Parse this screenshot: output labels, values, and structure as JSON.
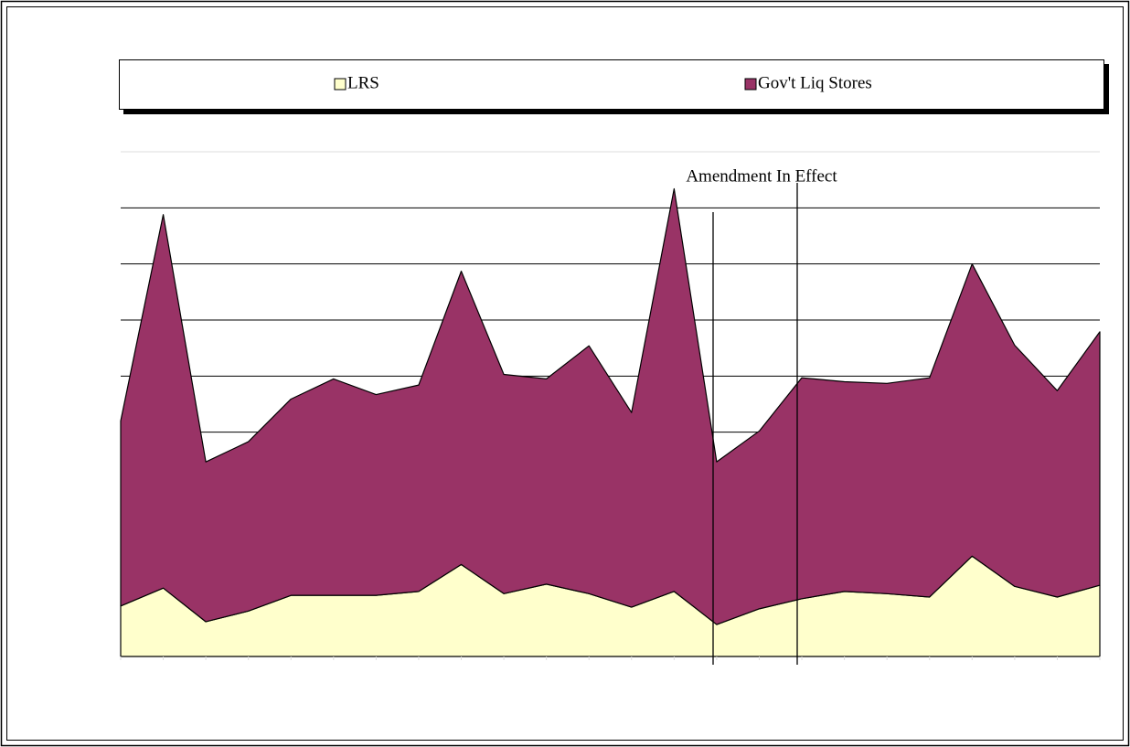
{
  "chart_data": {
    "type": "stacked-area",
    "categories": [
      null,
      null,
      null,
      null,
      null,
      null,
      null,
      null,
      null,
      null,
      null,
      null,
      null,
      null,
      null,
      null,
      null,
      null,
      null,
      null,
      null,
      null,
      null,
      null
    ],
    "series": [
      {
        "name": "LRS",
        "color": "#ffffcc",
        "values": [
          0.9,
          1.22,
          0.62,
          0.81,
          1.09,
          1.09,
          1.09,
          1.16,
          1.64,
          1.12,
          1.29,
          1.12,
          0.88,
          1.16,
          0.57,
          0.85,
          1.03,
          1.16,
          1.12,
          1.06,
          1.79,
          1.25,
          1.06,
          1.27
        ]
      },
      {
        "name": "Gov't Liq Stores",
        "color": "#993366",
        "values": [
          3.3,
          6.66,
          2.85,
          3.02,
          3.5,
          3.86,
          3.58,
          3.68,
          5.23,
          3.91,
          3.66,
          4.42,
          3.47,
          7.18,
          2.9,
          3.17,
          3.94,
          3.74,
          3.75,
          3.91,
          5.21,
          4.3,
          3.68,
          4.52
        ]
      }
    ],
    "ylim": [
      0,
      9
    ],
    "yticks": [
      0,
      1,
      2,
      3,
      4,
      5,
      6,
      7,
      8,
      9
    ],
    "grid": true,
    "annotation": "Amendment In Effect",
    "legend": "top"
  }
}
